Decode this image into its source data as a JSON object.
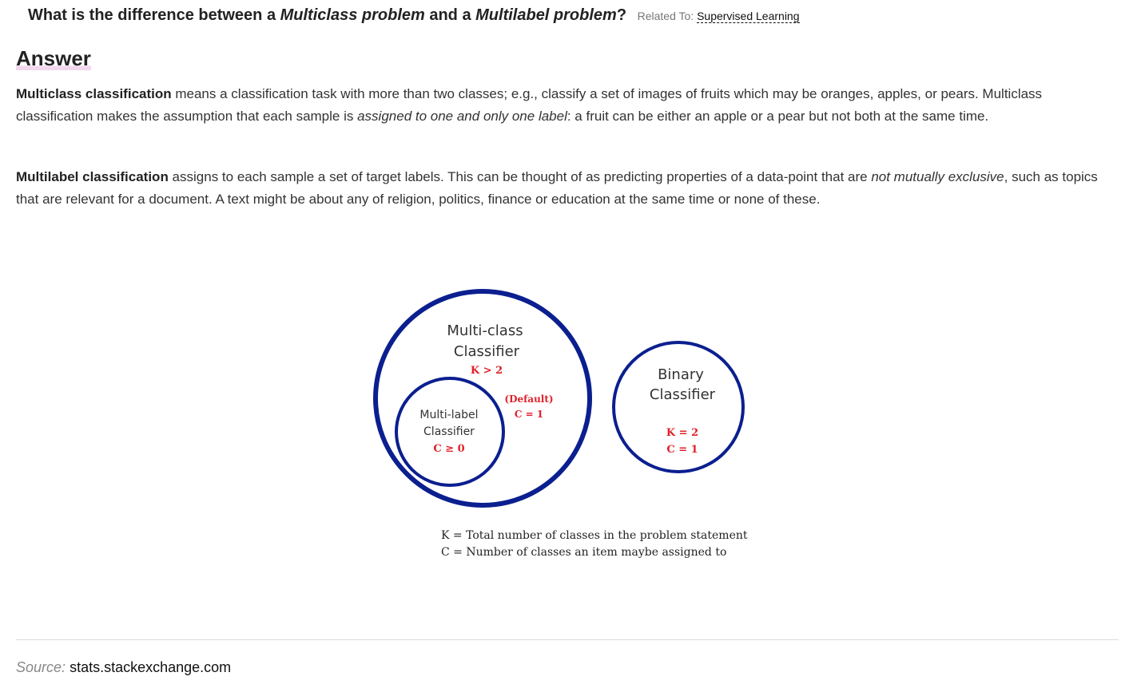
{
  "question": {
    "prefix": "What is the difference between a ",
    "term1": "Multiclass problem",
    "middle": " and a ",
    "term2": "Multilabel problem",
    "suffix": "?",
    "related_label": "Related To:",
    "related_link": "Supervised Learning"
  },
  "answer": {
    "heading": "Answer",
    "p1": {
      "bold": "Multiclass classification",
      "text1": " means a classification task with more than two classes; e.g., classify a set of images of fruits which may be oranges, apples, or pears. Multiclass classification makes the assumption that each sample is ",
      "italic": "assigned to one and only one label",
      "text2": ": a fruit can be either an apple or a pear but not both at the same time."
    },
    "p2": {
      "bold": "Multilabel classification",
      "text1": " assigns to each sample a set of target labels. This can be thought of as predicting properties of a data-point that are ",
      "italic": "not mutually exclusive",
      "text2": ", such as topics that are relevant for a document. A text might be about any of religion, politics, finance or education at the same time or none of these."
    }
  },
  "diagram": {
    "multiclass_title_1": "Multi-class",
    "multiclass_title_2": "Classifier",
    "multiclass_k": "K > 2",
    "multiclass_default": "(Default)",
    "multiclass_c": "C = 1",
    "multilabel_title_1": "Multi-label",
    "multilabel_title_2": "Classifier",
    "multilabel_c": "C ≥ 0",
    "binary_title_1": "Binary",
    "binary_title_2": "Classifier",
    "binary_k": "K = 2",
    "binary_c": "C = 1",
    "legend_k": "K = Total number of classes in the problem statement",
    "legend_c": "C = Number of classes an item maybe assigned to",
    "circle_color": "#0b1f8f",
    "accent_color": "#e0202a"
  },
  "source": {
    "label": "Source:",
    "value": "stats.stackexchange.com"
  }
}
